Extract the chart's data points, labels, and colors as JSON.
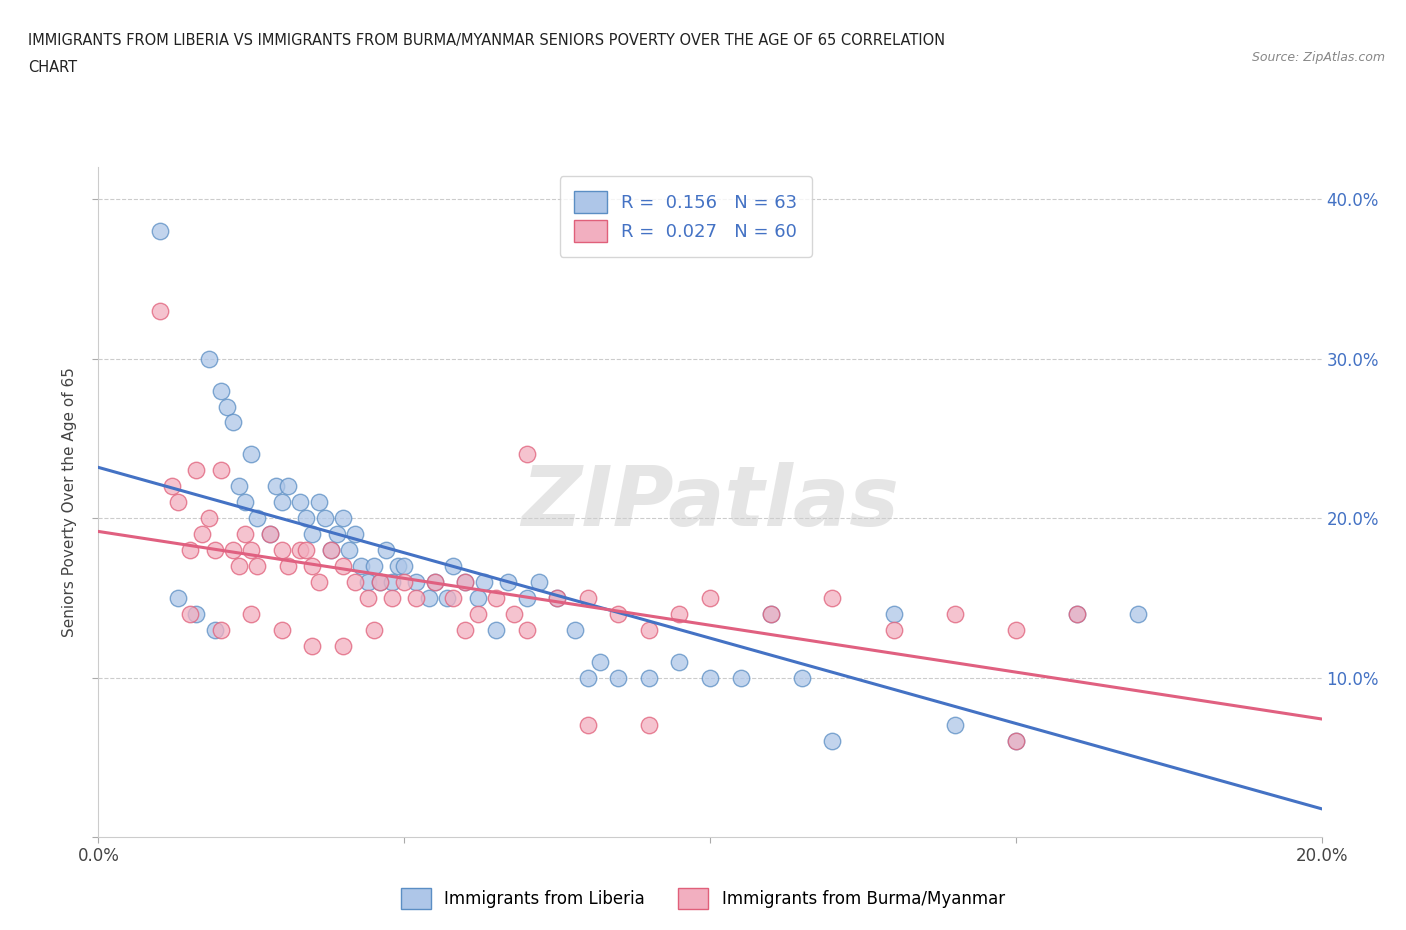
{
  "title_line1": "IMMIGRANTS FROM LIBERIA VS IMMIGRANTS FROM BURMA/MYANMAR SENIORS POVERTY OVER THE AGE OF 65 CORRELATION",
  "title_line2": "CHART",
  "source": "Source: ZipAtlas.com",
  "ylabel": "Seniors Poverty Over the Age of 65",
  "xlim": [
    0.0,
    0.2
  ],
  "ylim": [
    0.0,
    0.42
  ],
  "yticks": [
    0.0,
    0.1,
    0.2,
    0.3,
    0.4
  ],
  "xticks": [
    0.0,
    0.05,
    0.1,
    0.15,
    0.2
  ],
  "xtick_labels": [
    "0.0%",
    "",
    "",
    "",
    "20.0%"
  ],
  "ytick_labels_right": [
    "",
    "10.0%",
    "20.0%",
    "30.0%",
    "40.0%"
  ],
  "liberia_color": "#aec6e8",
  "burma_color": "#f2afc0",
  "liberia_edge_color": "#5b8ec4",
  "burma_edge_color": "#e0607a",
  "liberia_line_color": "#4472c4",
  "burma_line_color": "#e06080",
  "R_liberia": 0.156,
  "N_liberia": 63,
  "R_burma": 0.027,
  "N_burma": 60,
  "legend_label_1": "Immigrants from Liberia",
  "legend_label_2": "Immigrants from Burma/Myanmar",
  "watermark_text": "ZIPatlas",
  "liberia_x": [
    0.01,
    0.018,
    0.02,
    0.021,
    0.022,
    0.023,
    0.024,
    0.025,
    0.026,
    0.028,
    0.029,
    0.03,
    0.031,
    0.033,
    0.034,
    0.035,
    0.036,
    0.037,
    0.038,
    0.039,
    0.04,
    0.041,
    0.042,
    0.043,
    0.044,
    0.045,
    0.046,
    0.047,
    0.048,
    0.049,
    0.05,
    0.052,
    0.054,
    0.055,
    0.057,
    0.058,
    0.06,
    0.062,
    0.063,
    0.065,
    0.067,
    0.07,
    0.072,
    0.075,
    0.078,
    0.08,
    0.082,
    0.085,
    0.09,
    0.095,
    0.1,
    0.105,
    0.11,
    0.115,
    0.12,
    0.13,
    0.14,
    0.15,
    0.16,
    0.17,
    0.013,
    0.016,
    0.019
  ],
  "liberia_y": [
    0.38,
    0.3,
    0.28,
    0.27,
    0.26,
    0.22,
    0.21,
    0.24,
    0.2,
    0.19,
    0.22,
    0.21,
    0.22,
    0.21,
    0.2,
    0.19,
    0.21,
    0.2,
    0.18,
    0.19,
    0.2,
    0.18,
    0.19,
    0.17,
    0.16,
    0.17,
    0.16,
    0.18,
    0.16,
    0.17,
    0.17,
    0.16,
    0.15,
    0.16,
    0.15,
    0.17,
    0.16,
    0.15,
    0.16,
    0.13,
    0.16,
    0.15,
    0.16,
    0.15,
    0.13,
    0.1,
    0.11,
    0.1,
    0.1,
    0.11,
    0.1,
    0.1,
    0.14,
    0.1,
    0.06,
    0.14,
    0.07,
    0.06,
    0.14,
    0.14,
    0.15,
    0.14,
    0.13
  ],
  "burma_x": [
    0.01,
    0.012,
    0.013,
    0.015,
    0.016,
    0.017,
    0.018,
    0.019,
    0.02,
    0.022,
    0.023,
    0.024,
    0.025,
    0.026,
    0.028,
    0.03,
    0.031,
    0.033,
    0.034,
    0.035,
    0.036,
    0.038,
    0.04,
    0.042,
    0.044,
    0.046,
    0.048,
    0.05,
    0.052,
    0.055,
    0.058,
    0.06,
    0.062,
    0.065,
    0.068,
    0.07,
    0.075,
    0.08,
    0.085,
    0.09,
    0.095,
    0.1,
    0.11,
    0.12,
    0.13,
    0.14,
    0.15,
    0.16,
    0.015,
    0.02,
    0.025,
    0.03,
    0.035,
    0.04,
    0.045,
    0.06,
    0.07,
    0.08,
    0.09,
    0.15
  ],
  "burma_y": [
    0.33,
    0.22,
    0.21,
    0.18,
    0.23,
    0.19,
    0.2,
    0.18,
    0.23,
    0.18,
    0.17,
    0.19,
    0.18,
    0.17,
    0.19,
    0.18,
    0.17,
    0.18,
    0.18,
    0.17,
    0.16,
    0.18,
    0.17,
    0.16,
    0.15,
    0.16,
    0.15,
    0.16,
    0.15,
    0.16,
    0.15,
    0.16,
    0.14,
    0.15,
    0.14,
    0.24,
    0.15,
    0.15,
    0.14,
    0.13,
    0.14,
    0.15,
    0.14,
    0.15,
    0.13,
    0.14,
    0.13,
    0.14,
    0.14,
    0.13,
    0.14,
    0.13,
    0.12,
    0.12,
    0.13,
    0.13,
    0.13,
    0.07,
    0.07,
    0.06
  ]
}
